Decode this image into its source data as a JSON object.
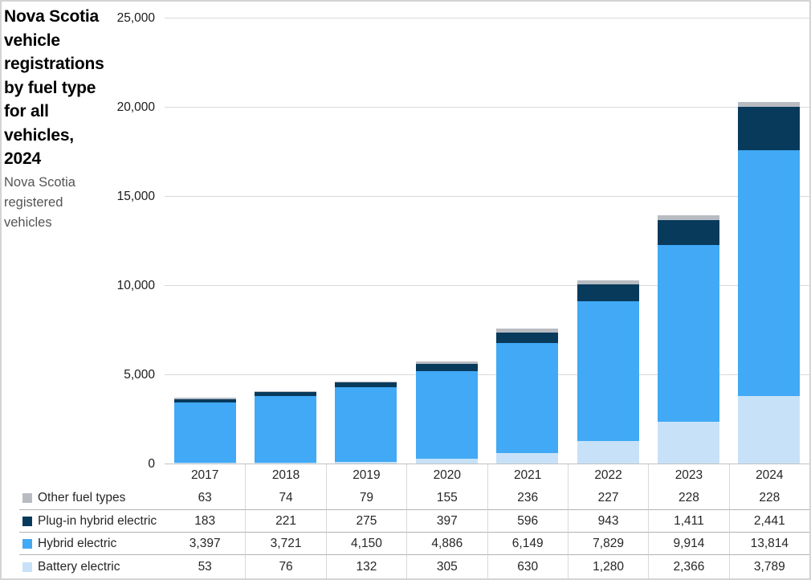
{
  "title": "Nova Scotia vehicle registrations by fuel type for all vehicles, 2024",
  "subtitle": "Nova Scotia registered vehicles",
  "chart_data": {
    "type": "bar",
    "stacked": true,
    "title": "Nova Scotia vehicle registrations by fuel type for all vehicles, 2024",
    "ylabel": "Nova Scotia registered vehicles",
    "xlabel": "",
    "categories": [
      "2017",
      "2018",
      "2019",
      "2020",
      "2021",
      "2022",
      "2023",
      "2024"
    ],
    "series": [
      {
        "name": "Other fuel types",
        "color": "#b8bcc2",
        "values": [
          63,
          74,
          79,
          155,
          236,
          227,
          228,
          228
        ]
      },
      {
        "name": "Plug-in hybrid electric",
        "color": "#083a5c",
        "values": [
          183,
          221,
          275,
          397,
          596,
          943,
          1411,
          2441
        ]
      },
      {
        "name": "Hybrid electric",
        "color": "#41a9f5",
        "values": [
          3397,
          3721,
          4150,
          4886,
          6149,
          7829,
          9914,
          13814
        ]
      },
      {
        "name": "Battery electric",
        "color": "#c7e2f8",
        "values": [
          53,
          76,
          132,
          305,
          630,
          1280,
          2366,
          3789
        ]
      }
    ],
    "stack_order_bottom_to_top": [
      "Battery electric",
      "Hybrid electric",
      "Plug-in hybrid electric",
      "Other fuel types"
    ],
    "ylim": [
      0,
      25000
    ],
    "y_tick_interval": 5000,
    "y_tick_labels_bottom_to_top": [
      "0",
      "5,000",
      "10,000",
      "15,000",
      "20,000",
      "25,000"
    ],
    "grid": true,
    "legend_position": "table-row-headers"
  },
  "colors": {
    "gridline": "#d9d9d9",
    "baseline": "#c2c2c2",
    "table_row_line": "#b3b3b3",
    "table_col_line": "#d9d9d9",
    "frame_border": "#d4d4d4",
    "text": "#262626",
    "subtitle_text": "#545454"
  }
}
